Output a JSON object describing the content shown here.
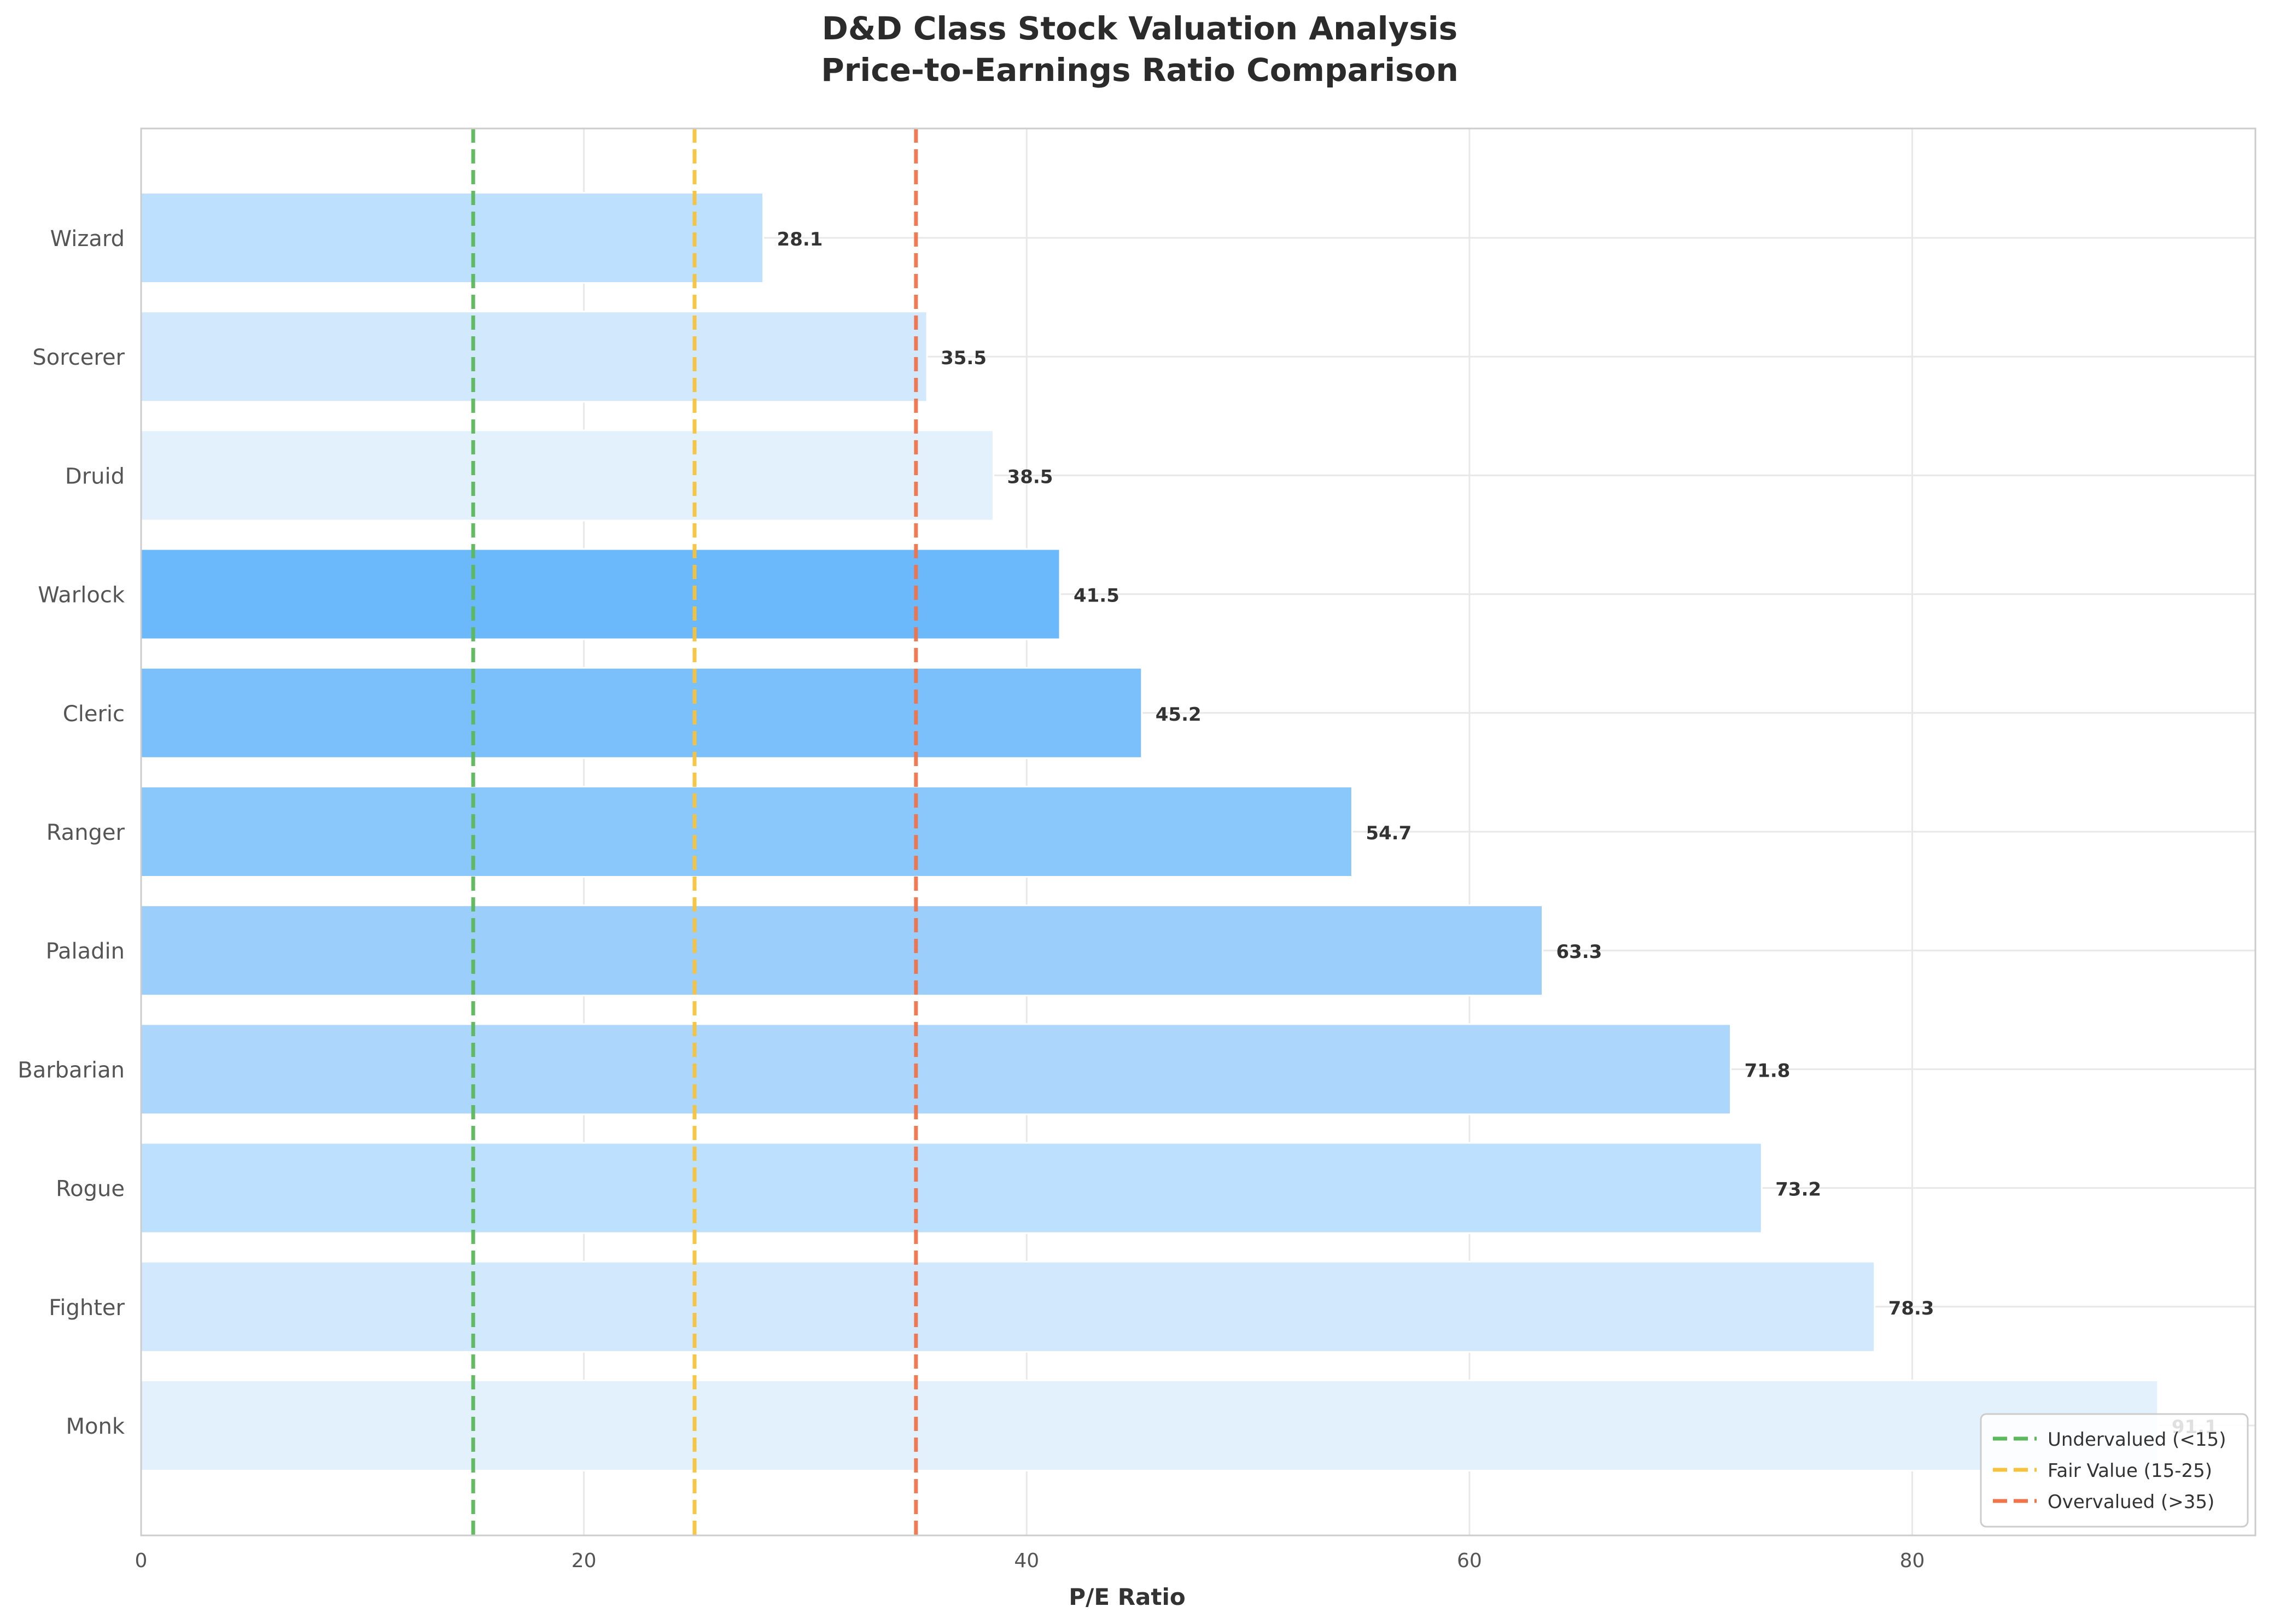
{
  "chart_data": {
    "type": "bar",
    "orientation": "horizontal",
    "title": "D&D Class Stock Valuation Analysis",
    "subtitle": "Price-to-Earnings Ratio Comparison",
    "xlabel": "P/E Ratio",
    "ylabel": "",
    "xlim": [
      0,
      95.5
    ],
    "xticks": [
      0,
      20,
      40,
      60,
      80
    ],
    "grid": true,
    "legend_position": "bottom-right",
    "categories": [
      "Wizard",
      "Sorcerer",
      "Druid",
      "Warlock",
      "Cleric",
      "Ranger",
      "Paladin",
      "Barbarian",
      "Rogue",
      "Fighter",
      "Monk"
    ],
    "values": [
      28.1,
      35.5,
      38.5,
      41.5,
      45.2,
      54.7,
      63.3,
      71.8,
      73.2,
      78.3,
      91.1
    ],
    "value_labels": [
      "28.1",
      "35.5",
      "38.5",
      "41.5",
      "45.2",
      "54.7",
      "63.3",
      "71.8",
      "73.2",
      "78.3",
      "91.1"
    ],
    "bar_colors": [
      "#bde0fe",
      "#d2e8fc",
      "#e3f1fd",
      "#6bb9fb",
      "#7cc0fb",
      "#8ac7fb",
      "#9bcefb",
      "#acd6fc",
      "#bde0fe",
      "#d2e8fc",
      "#e3f1fd"
    ],
    "reference_lines": [
      {
        "name": "Undervalued (<15)",
        "x": 15,
        "color": "#5cb85c"
      },
      {
        "name": "Fair Value (15-25)",
        "x": 25,
        "color": "#f7c33d"
      },
      {
        "name": "Overvalued (>35)",
        "x": 35,
        "color": "#f0734a"
      }
    ]
  }
}
